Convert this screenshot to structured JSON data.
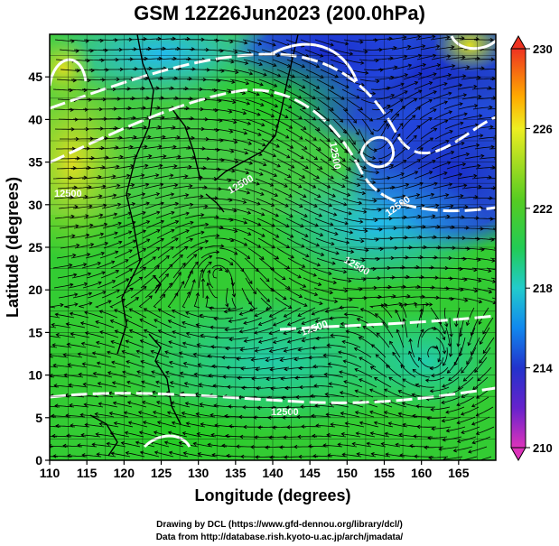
{
  "title": "GSM 12Z26Jun2023 (200.0hPa)",
  "xaxis": {
    "label": "Longitude (degrees)",
    "range": [
      110,
      170
    ],
    "ticks": [
      "110",
      "115",
      "120",
      "125",
      "130",
      "135",
      "140",
      "145",
      "150",
      "155",
      "160",
      "165"
    ]
  },
  "yaxis": {
    "label": "Latitude (degrees)",
    "range": [
      0,
      50
    ],
    "ticks": [
      "0",
      "5",
      "10",
      "15",
      "20",
      "25",
      "30",
      "35",
      "40",
      "45"
    ]
  },
  "colorbar": {
    "range": [
      210,
      230
    ],
    "ticks": [
      "210",
      "214",
      "218",
      "222",
      "226",
      "230"
    ],
    "colors": [
      "#cc33bb",
      "#3322cc",
      "#1199ee",
      "#33dddd",
      "#33cc33",
      "#88dd22",
      "#eeee22",
      "#ffaa00",
      "#ee4422"
    ]
  },
  "contour_labels": [
    "12500",
    "12500",
    "12500",
    "12500",
    "12500",
    "12500",
    "12500"
  ],
  "credits": {
    "line1": "Drawing by DCL (https://www.gfd-dennou.org/library/dcl/)",
    "line2": "Data from http://database.rish.kyoto-u.ac.jp/arch/jmadata/"
  }
}
